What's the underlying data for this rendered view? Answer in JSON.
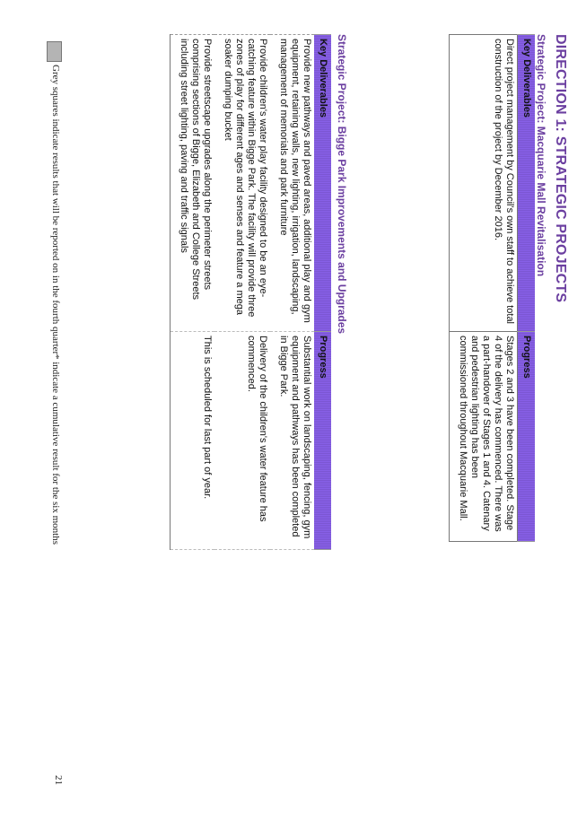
{
  "direction_heading": "DIRECTION 1: STRATEGIC PROJECTS",
  "project1": {
    "title": "Strategic Project: Macquarie Mall Revitalisation",
    "headers": [
      "Key Deliverables",
      "Progress"
    ],
    "rows": [
      {
        "deliverable": "Direct project management by Council's own staff to achieve total construction of the project by December 2016.",
        "progress": "Stages 2 and 3 have been completed. Stage 4 of the delivery has commenced. There was a part-handover of Stages 1 and 4. Catenary and pedestrian lighting has been commissioned throughout Macquarie Mall."
      }
    ]
  },
  "project2": {
    "title": "Strategic Project: Bigge Park Improvements and Upgrades",
    "headers": [
      "Key Deliverables",
      "Progress"
    ],
    "rows": [
      {
        "deliverable": "Provide new pathways and paved areas, additional play and gym equipment, retaining walls, new lighting, irrigation, landscaping, management of memorials and park furniture",
        "progress": "Substantial work on landscaping, fencing, gym equipment and pathways has been completed in Bigge Park."
      },
      {
        "deliverable": "Provide children's water play facility designed to be an eye-catching feature within Bigge Park. The facility will provide three zones of play for different ages and senses and feature a mega soaker dumping bucket",
        "progress": "Delivery of the children's water feature has commenced."
      },
      {
        "deliverable": "Provide streetscape upgrades along the perimeter streets comprising sections of Bigge, Elizabeth and College Streets including street lighting, paving and traffic signals",
        "progress": "This is scheduled for last part of year."
      }
    ]
  },
  "legend": {
    "grey_squares": "Grey squares indicate results that will be reported on in the fourth quarter",
    "asterisk": "* indicate a cumulative result for the six months"
  },
  "page_number": "21"
}
